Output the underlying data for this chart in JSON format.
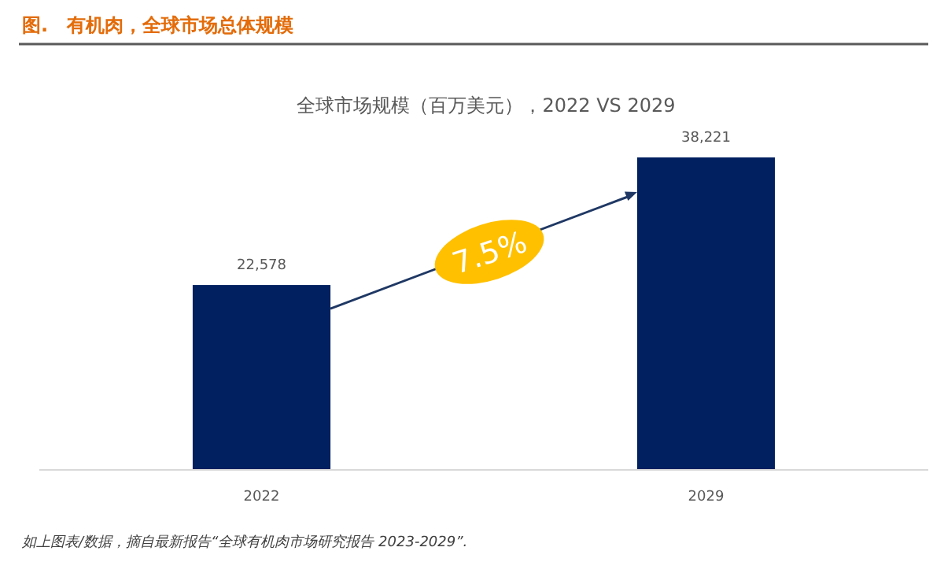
{
  "chart_data": {
    "type": "bar",
    "title": "图.　有机肉，全球市场总体规模",
    "subtitle": "全球市场规模（百万美元），2022 VS 2029",
    "categories": [
      "2022",
      "2029"
    ],
    "values": [
      22578,
      38221
    ],
    "value_labels": [
      "22,578",
      "38,221"
    ],
    "color": "#002060",
    "annotations": [
      "7.5%",
      "如上图表/数据，摘自最新报告“全球有机肉市场研究报告 2023-2029”."
    ]
  }
}
